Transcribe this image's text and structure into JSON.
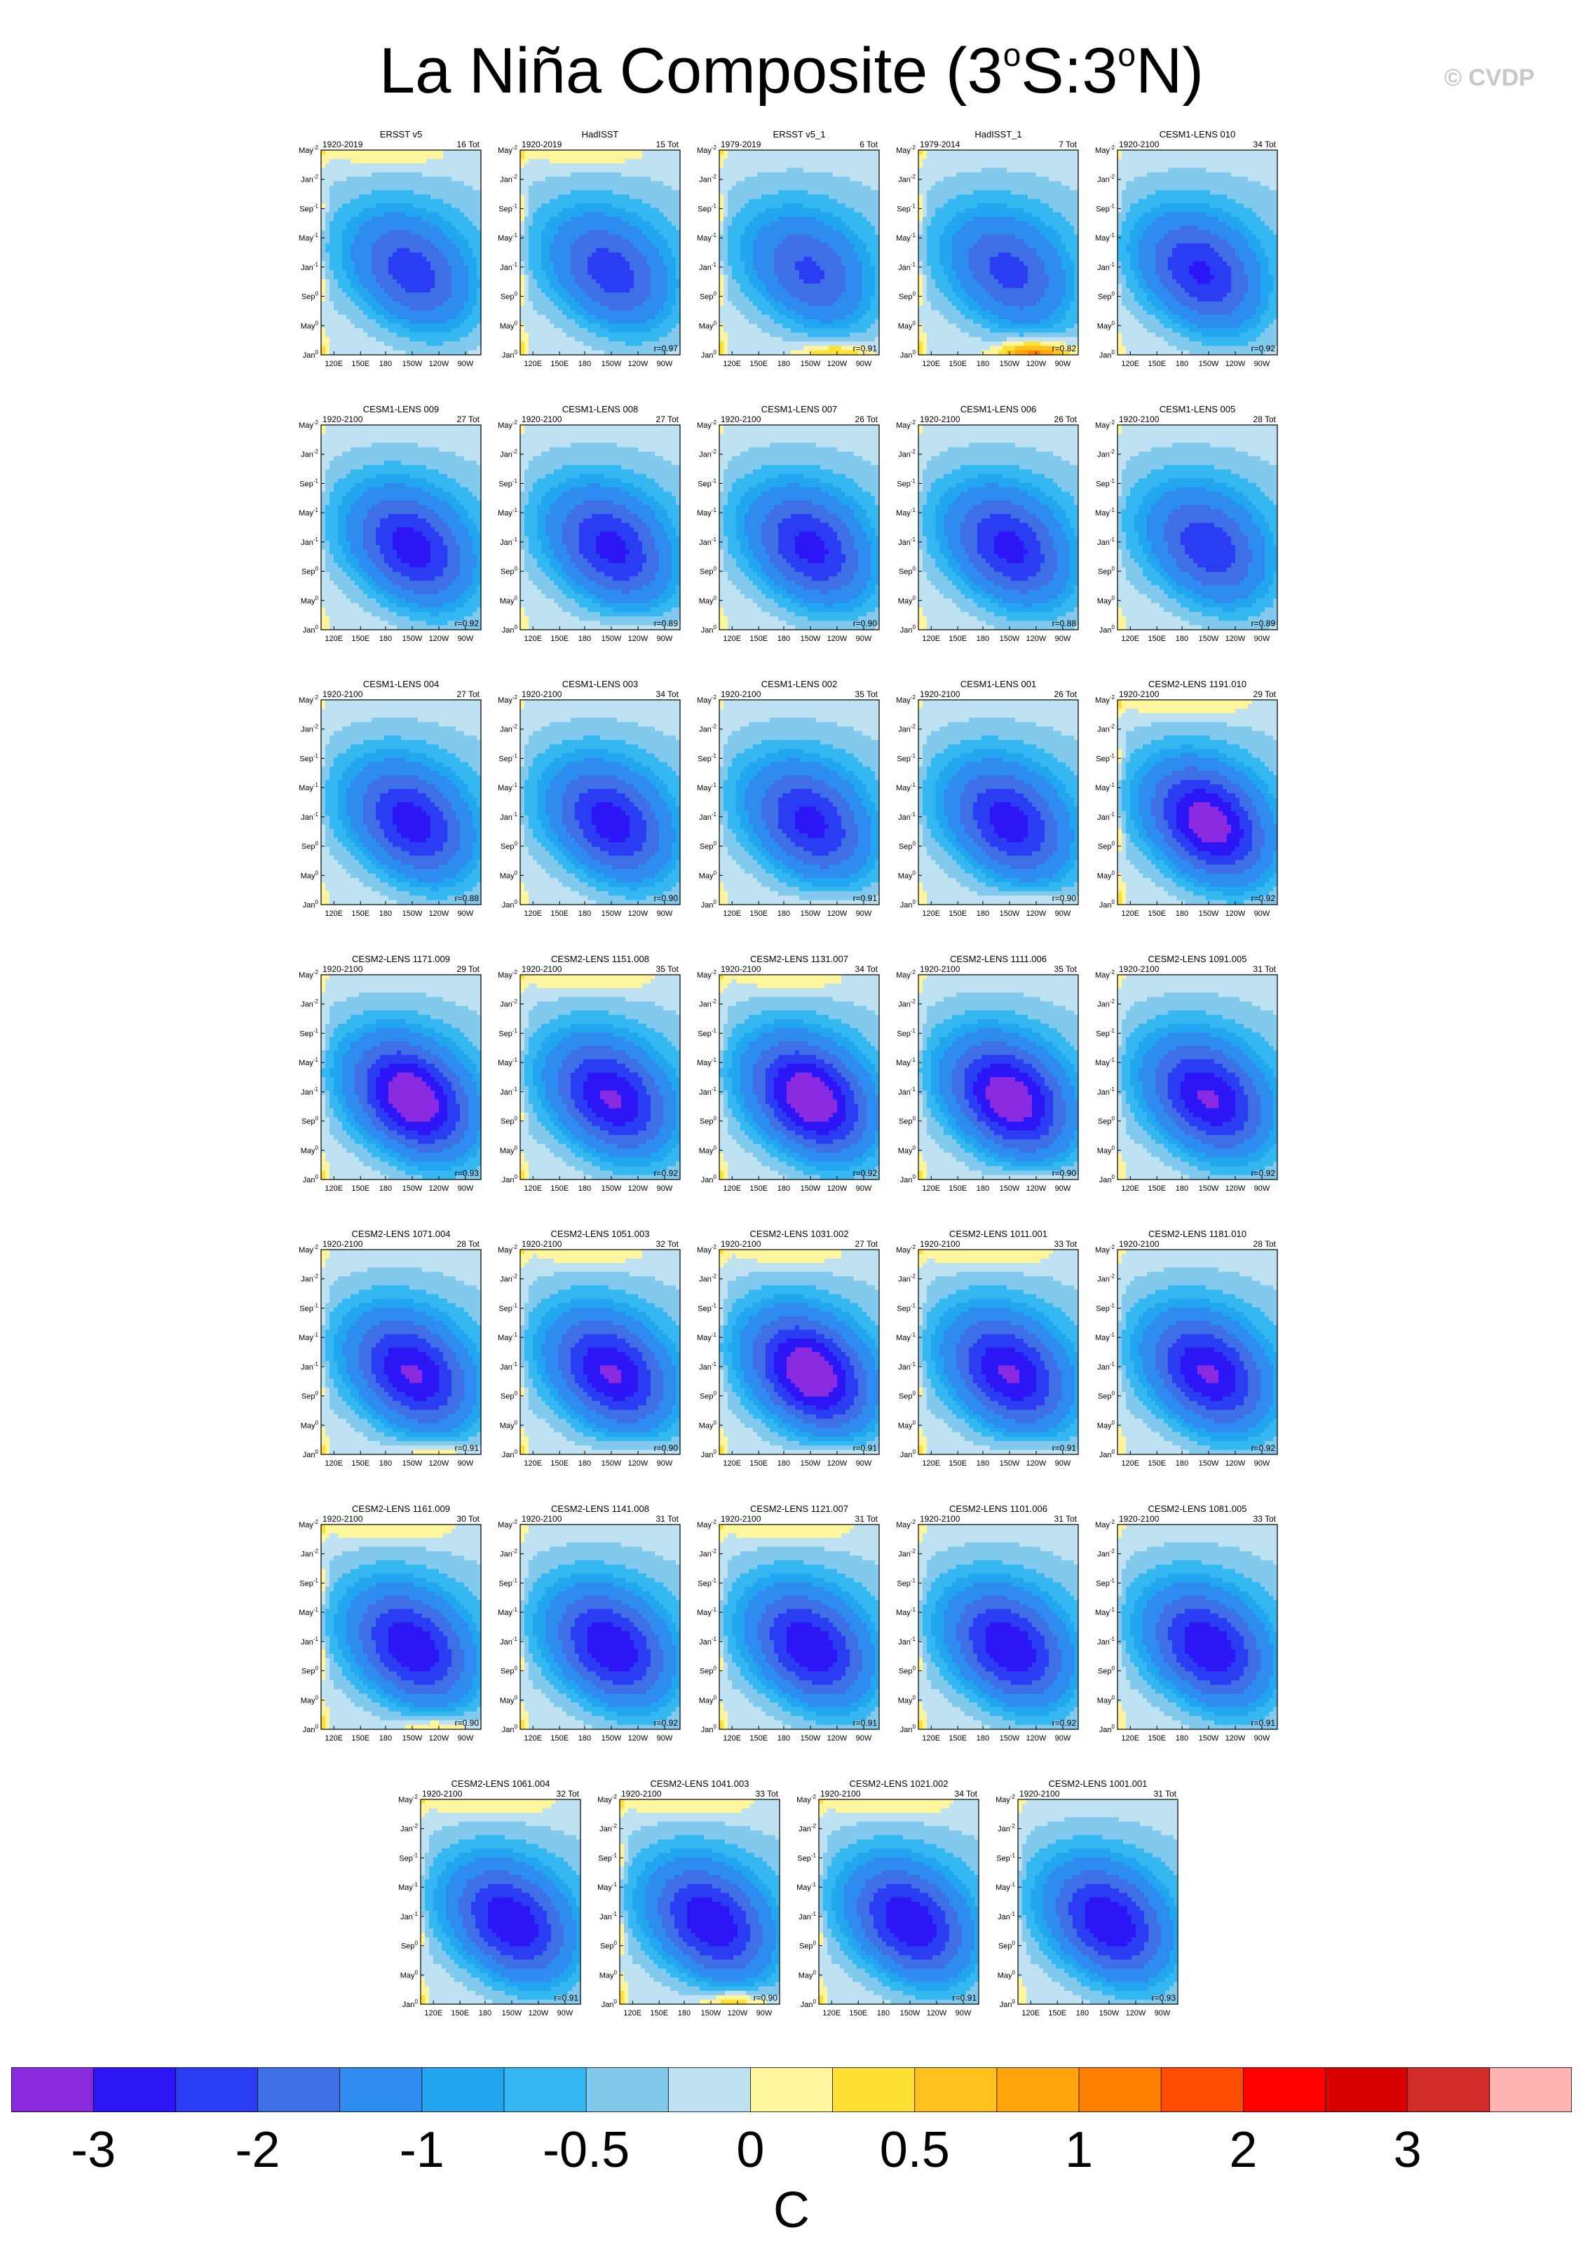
{
  "title": {
    "main": "La Niña Composite (3",
    "sup1": "o",
    "mid": "S:3",
    "sup2": "o",
    "end": "N)"
  },
  "copyright": "© CVDP",
  "ytick_labels": [
    {
      "base": "May",
      "sup": "-2"
    },
    {
      "base": "Jan",
      "sup": "-2"
    },
    {
      "base": "Sep",
      "sup": "-1"
    },
    {
      "base": "May",
      "sup": "-1"
    },
    {
      "base": "Jan",
      "sup": "-1"
    },
    {
      "base": "Sep",
      "sup": "0"
    },
    {
      "base": "May",
      "sup": "0"
    },
    {
      "base": "Jan",
      "sup": "0"
    }
  ],
  "xtick_labels": [
    "120E",
    "150E",
    "180",
    "150W",
    "120W",
    "90W"
  ],
  "colors": {
    "levels": [
      "#8a2be2",
      "#2c16f5",
      "#2a3df2",
      "#3f6fe6",
      "#2e8cf0",
      "#22a6f0",
      "#35b8f2",
      "#82c9ee",
      "#bfe2f2",
      "#fff59c",
      "#ffe033",
      "#ffc21c",
      "#ffa50a",
      "#ff8000",
      "#ff4d00",
      "#ff0000",
      "#d90000",
      "#d32a2a",
      "#ffb3b3"
    ]
  },
  "colorbar": {
    "labels": [
      "-3",
      "-2",
      "-1",
      "-0.5",
      "0",
      "0.5",
      "1",
      "2",
      "3"
    ],
    "units": "C"
  },
  "chart_data": {
    "type": "heatmap",
    "description_of_axes": {
      "x": "longitude",
      "y": "month relative to event"
    },
    "panels": [
      {
        "name": "ERSST v5",
        "years": "1920-2019",
        "count": "16 Tot",
        "r": "",
        "cold_core": -1.8,
        "cold_west_bias": 0,
        "warm_top": 0.3,
        "warm_bottom": 0.0,
        "warm_west": 0.4
      },
      {
        "name": "HadISST",
        "years": "1920-2019",
        "count": "15 Tot",
        "r": "r=0.97",
        "cold_core": -1.8,
        "cold_west_bias": 0,
        "warm_top": 0.3,
        "warm_bottom": 0.0,
        "warm_west": 0.5
      },
      {
        "name": "ERSST v5_1",
        "years": "1979-2019",
        "count": "6 Tot",
        "r": "r=0.91",
        "cold_core": -1.6,
        "cold_west_bias": 0,
        "warm_top": 0.0,
        "warm_bottom": 0.8,
        "warm_west": 0.5
      },
      {
        "name": "HadISST_1",
        "years": "1979-2014",
        "count": "7 Tot",
        "r": "r=0.82",
        "cold_core": -1.7,
        "cold_west_bias": 0,
        "warm_top": 0.0,
        "warm_bottom": 1.4,
        "warm_west": 0.5
      },
      {
        "name": "CESM1-LENS 010",
        "years": "1920-2100",
        "count": "34 Tot",
        "r": "r=0.92",
        "cold_core": -2.1,
        "cold_west_bias": 1,
        "warm_top": 0.0,
        "warm_bottom": 0.0,
        "warm_west": 0.2
      },
      {
        "name": "CESM1-LENS 009",
        "years": "1920-2100",
        "count": "27 Tot",
        "r": "r=0.92",
        "cold_core": -2.3,
        "cold_west_bias": 0,
        "warm_top": 0.0,
        "warm_bottom": 0.0,
        "warm_west": 0.2
      },
      {
        "name": "CESM1-LENS 008",
        "years": "1920-2100",
        "count": "27 Tot",
        "r": "r=0.89",
        "cold_core": -2.2,
        "cold_west_bias": 0,
        "warm_top": 0.0,
        "warm_bottom": 0.3,
        "warm_west": 0.2
      },
      {
        "name": "CESM1-LENS 007",
        "years": "1920-2100",
        "count": "26 Tot",
        "r": "r=0.90",
        "cold_core": -2.2,
        "cold_west_bias": 0,
        "warm_top": 0.0,
        "warm_bottom": 0.0,
        "warm_west": 0.2
      },
      {
        "name": "CESM1-LENS 006",
        "years": "1920-2100",
        "count": "26 Tot",
        "r": "r=0.88",
        "cold_core": -2.2,
        "cold_west_bias": 0,
        "warm_top": 0.0,
        "warm_bottom": 0.0,
        "warm_west": 0.2
      },
      {
        "name": "CESM1-LENS 005",
        "years": "1920-2100",
        "count": "28 Tot",
        "r": "r=0.89",
        "cold_core": -1.9,
        "cold_west_bias": 0,
        "warm_top": 0.0,
        "warm_bottom": 0.0,
        "warm_west": 0.2
      },
      {
        "name": "CESM1-LENS 004",
        "years": "1920-2100",
        "count": "27 Tot",
        "r": "r=0.88",
        "cold_core": -2.3,
        "cold_west_bias": 0,
        "warm_top": 0.0,
        "warm_bottom": 0.0,
        "warm_west": 0.2
      },
      {
        "name": "CESM1-LENS 003",
        "years": "1920-2100",
        "count": "34 Tot",
        "r": "r=0.90",
        "cold_core": -2.3,
        "cold_west_bias": 0,
        "warm_top": 0.0,
        "warm_bottom": 0.0,
        "warm_west": 0.2
      },
      {
        "name": "CESM1-LENS 002",
        "years": "1920-2100",
        "count": "35 Tot",
        "r": "r=0.91",
        "cold_core": -2.2,
        "cold_west_bias": 0,
        "warm_top": 0.0,
        "warm_bottom": 0.3,
        "warm_west": 0.2
      },
      {
        "name": "CESM1-LENS 001",
        "years": "1920-2100",
        "count": "26 Tot",
        "r": "r=0.90",
        "cold_core": -2.3,
        "cold_west_bias": 0,
        "warm_top": 0.0,
        "warm_bottom": 0.4,
        "warm_west": 0.2
      },
      {
        "name": "CESM2-LENS 1191.010",
        "years": "1920-2100",
        "count": "29 Tot",
        "r": "r=0.92",
        "cold_core": -2.9,
        "cold_west_bias": 0,
        "warm_top": 0.4,
        "warm_bottom": 0.0,
        "warm_west": 0.5
      },
      {
        "name": "CESM2-LENS 1171.009",
        "years": "1920-2100",
        "count": "29 Tot",
        "r": "r=0.93",
        "cold_core": -3.1,
        "cold_west_bias": 0,
        "warm_top": 0.0,
        "warm_bottom": 0.0,
        "warm_west": 0.4
      },
      {
        "name": "CESM2-LENS 1151.008",
        "years": "1920-2100",
        "count": "35 Tot",
        "r": "r=0.92",
        "cold_core": -2.6,
        "cold_west_bias": 0,
        "warm_top": 0.4,
        "warm_bottom": 0.0,
        "warm_west": 0.4
      },
      {
        "name": "CESM2-LENS 1131.007",
        "years": "1920-2100",
        "count": "34 Tot",
        "r": "r=0.92",
        "cold_core": -3.1,
        "cold_west_bias": 0,
        "warm_top": 0.3,
        "warm_bottom": 0.0,
        "warm_west": 0.4
      },
      {
        "name": "CESM2-LENS 1111.006",
        "years": "1920-2100",
        "count": "35 Tot",
        "r": "r=0.90",
        "cold_core": -3.0,
        "cold_west_bias": 0,
        "warm_top": 0.0,
        "warm_bottom": 0.4,
        "warm_west": 0.4
      },
      {
        "name": "CESM2-LENS 1091.005",
        "years": "1920-2100",
        "count": "31 Tot",
        "r": "r=0.92",
        "cold_core": -2.6,
        "cold_west_bias": 0,
        "warm_top": 0.0,
        "warm_bottom": 0.0,
        "warm_west": 0.3
      },
      {
        "name": "CESM2-LENS 1071.004",
        "years": "1920-2100",
        "count": "28 Tot",
        "r": "r=0.91",
        "cold_core": -2.6,
        "cold_west_bias": 0,
        "warm_top": 0.0,
        "warm_bottom": 0.6,
        "warm_west": 0.4
      },
      {
        "name": "CESM2-LENS 1051.003",
        "years": "1920-2100",
        "count": "32 Tot",
        "r": "r=0.90",
        "cold_core": -2.6,
        "cold_west_bias": 0,
        "warm_top": 0.3,
        "warm_bottom": 0.4,
        "warm_west": 0.4
      },
      {
        "name": "CESM2-LENS 1031.002",
        "years": "1920-2100",
        "count": "27 Tot",
        "r": "r=0.91",
        "cold_core": -3.1,
        "cold_west_bias": 0,
        "warm_top": 0.3,
        "warm_bottom": 0.4,
        "warm_west": 0.4
      },
      {
        "name": "CESM2-LENS 1011.001",
        "years": "1920-2100",
        "count": "33 Tot",
        "r": "r=0.91",
        "cold_core": -2.6,
        "cold_west_bias": 0,
        "warm_top": 0.4,
        "warm_bottom": 0.4,
        "warm_west": 0.4
      },
      {
        "name": "CESM2-LENS 1181.010",
        "years": "1920-2100",
        "count": "28 Tot",
        "r": "r=0.92",
        "cold_core": -2.6,
        "cold_west_bias": 0,
        "warm_top": 0.0,
        "warm_bottom": 0.0,
        "warm_west": 0.3
      },
      {
        "name": "CESM2-LENS 1161.009",
        "years": "1920-2100",
        "count": "30 Tot",
        "r": "r=0.90",
        "cold_core": -2.5,
        "cold_west_bias": 0,
        "warm_top": 0.4,
        "warm_bottom": 0.7,
        "warm_west": 0.5
      },
      {
        "name": "CESM2-LENS 1141.008",
        "years": "1920-2100",
        "count": "31 Tot",
        "r": "r=0.92",
        "cold_core": -2.5,
        "cold_west_bias": 0,
        "warm_top": 0.0,
        "warm_bottom": 0.0,
        "warm_west": 0.4
      },
      {
        "name": "CESM2-LENS 1121.007",
        "years": "1920-2100",
        "count": "31 Tot",
        "r": "r=0.91",
        "cold_core": -2.5,
        "cold_west_bias": 0,
        "warm_top": 0.4,
        "warm_bottom": 0.0,
        "warm_west": 0.4
      },
      {
        "name": "CESM2-LENS 1101.006",
        "years": "1920-2100",
        "count": "31 Tot",
        "r": "r=0.92",
        "cold_core": -2.5,
        "cold_west_bias": 0,
        "warm_top": 0.0,
        "warm_bottom": 0.0,
        "warm_west": 0.4
      },
      {
        "name": "CESM2-LENS 1081.005",
        "years": "1920-2100",
        "count": "33 Tot",
        "r": "r=0.91",
        "cold_core": -2.5,
        "cold_west_bias": 0,
        "warm_top": 0.0,
        "warm_bottom": 0.0,
        "warm_west": 0.3
      },
      {
        "name": "CESM2-LENS 1061.004",
        "years": "1920-2100",
        "count": "32 Tot",
        "r": "r=0.91",
        "cold_core": -2.5,
        "cold_west_bias": 0,
        "warm_top": 0.4,
        "warm_bottom": 0.0,
        "warm_west": 0.4
      },
      {
        "name": "CESM2-LENS 1041.003",
        "years": "1920-2100",
        "count": "33 Tot",
        "r": "r=0.90",
        "cold_core": -2.5,
        "cold_west_bias": 0,
        "warm_top": 0.4,
        "warm_bottom": 0.8,
        "warm_west": 0.5
      },
      {
        "name": "CESM2-LENS 1021.002",
        "years": "1920-2100",
        "count": "34 Tot",
        "r": "r=0.91",
        "cold_core": -2.5,
        "cold_west_bias": 0,
        "warm_top": 0.4,
        "warm_bottom": 0.0,
        "warm_west": 0.4
      },
      {
        "name": "CESM2-LENS 1001.001",
        "years": "1920-2100",
        "count": "31 Tot",
        "r": "r=0.93",
        "cold_core": -2.5,
        "cold_west_bias": 0,
        "warm_top": 0.0,
        "warm_bottom": 0.0,
        "warm_west": 0.3
      }
    ]
  }
}
